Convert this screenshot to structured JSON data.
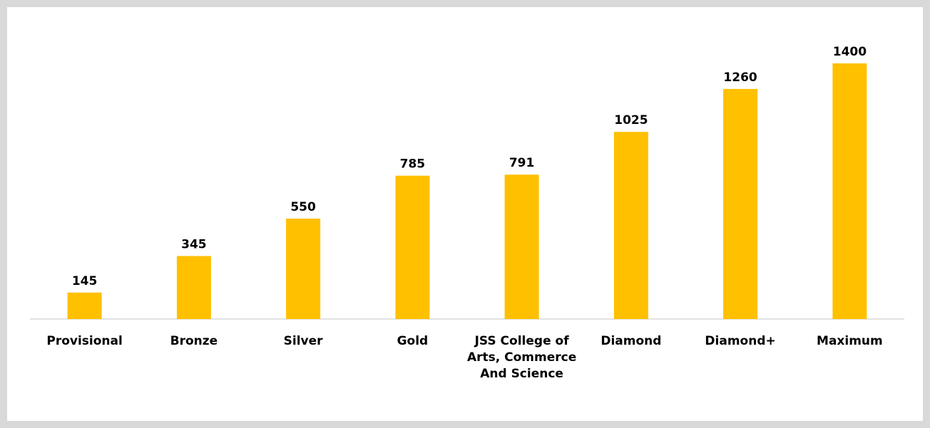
{
  "chart_data": {
    "type": "bar",
    "title": "",
    "xlabel": "",
    "ylabel": "",
    "categories": [
      "Provisional",
      "Bronze",
      "Silver",
      "Gold",
      "JSS College of Arts, Commerce And Science",
      "Diamond",
      "Diamond+",
      "Maximum"
    ],
    "values": [
      145,
      345,
      550,
      785,
      791,
      1025,
      1260,
      1400
    ],
    "ylim": [
      0,
      1400
    ],
    "grid": false,
    "legend": "none",
    "data_labels": true,
    "bar_color": "#ffc000"
  },
  "colors": {
    "background": "#d9d9d9",
    "panel": "#ffffff",
    "bar": "#ffc000",
    "axis": "#d9d9d9",
    "text": "#000000"
  }
}
